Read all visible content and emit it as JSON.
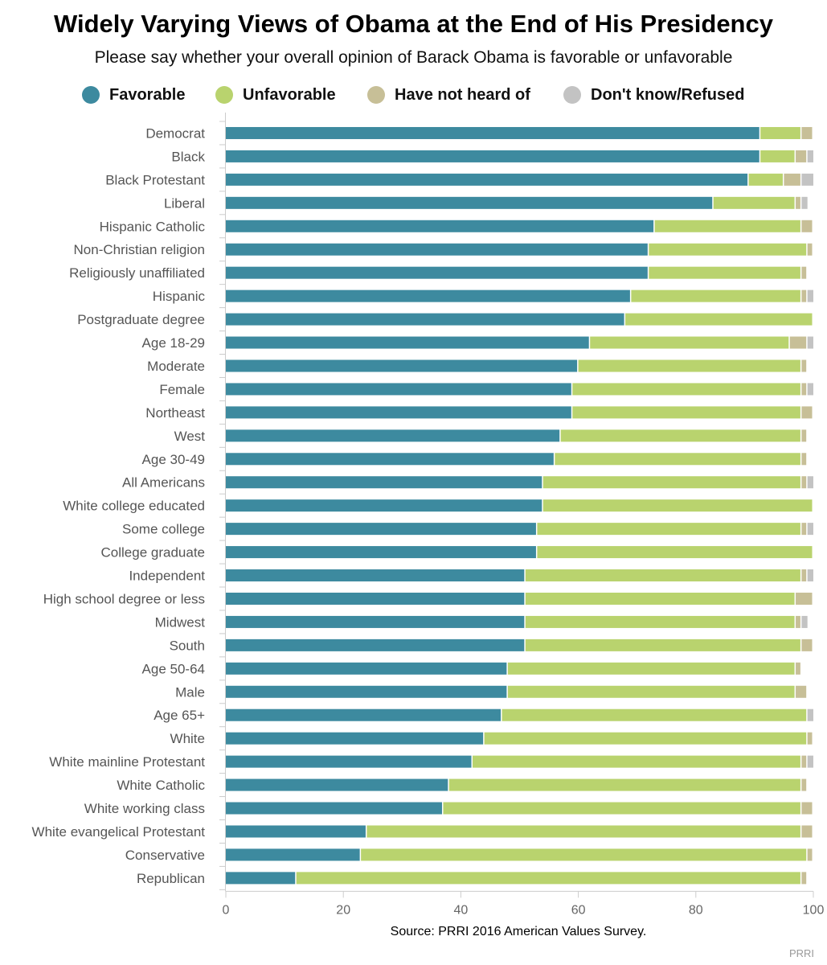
{
  "chart_data": {
    "type": "bar",
    "orientation": "horizontal",
    "stacked": true,
    "title": "Widely Varying Views of Obama at the End of His Presidency",
    "subtitle": "Please say whether your overall opinion of Barack Obama is favorable or unfavorable",
    "source": "Source: PRRI 2016 American Values Survey.",
    "credit": "PRRI",
    "xlim": [
      0,
      100
    ],
    "xticks": [
      "0",
      "20",
      "40",
      "60",
      "80",
      "100"
    ],
    "legend_position": "top",
    "categories": [
      "Democrat",
      "Black",
      "Black Protestant",
      "Liberal",
      "Hispanic Catholic",
      "Non-Christian religion",
      "Religiously unaffiliated",
      "Hispanic",
      "Postgraduate degree",
      "Age 18-29",
      "Moderate",
      "Female",
      "Northeast",
      "West",
      "Age 30-49",
      "All Americans",
      "White college educated",
      "Some college",
      "College graduate",
      "Independent",
      "High school degree or less",
      "Midwest",
      "South",
      "Age 50-64",
      "Male",
      "Age 65+",
      "White",
      "White mainline Protestant",
      "White Catholic",
      "White working class",
      "White evangelical Protestant",
      "Conservative",
      "Republican"
    ],
    "series": [
      {
        "name": "Favorable",
        "color": "#3d8a9f",
        "values": [
          91,
          91,
          89,
          83,
          73,
          72,
          72,
          69,
          68,
          62,
          60,
          59,
          59,
          57,
          56,
          54,
          54,
          53,
          53,
          51,
          51,
          51,
          51,
          48,
          48,
          47,
          44,
          42,
          38,
          37,
          24,
          23,
          12
        ]
      },
      {
        "name": "Unfavorable",
        "color": "#b9d36e",
        "values": [
          7,
          6,
          6,
          14,
          25,
          27,
          26,
          29,
          33,
          34,
          38,
          39,
          39,
          41,
          42,
          44,
          46,
          45,
          47,
          47,
          46,
          46,
          47,
          49,
          49,
          52,
          55,
          56,
          60,
          61,
          74,
          76,
          86
        ]
      },
      {
        "name": "Have not heard of",
        "color": "#c7bf97",
        "values": [
          2,
          2,
          3,
          1,
          2,
          1,
          1,
          1,
          0,
          3,
          1,
          1,
          2,
          1,
          1,
          1,
          0,
          1,
          0,
          1,
          3,
          1,
          2,
          1,
          2,
          0,
          1,
          1,
          1,
          2,
          2,
          1,
          1
        ]
      },
      {
        "name": "Don't know/Refused",
        "color": "#c3c3c3",
        "values": [
          0,
          1,
          2,
          1,
          0,
          0,
          0,
          1,
          0,
          1,
          0,
          1,
          0,
          0,
          0,
          1,
          0,
          1,
          0,
          1,
          0,
          1,
          0,
          0,
          0,
          1,
          0,
          1,
          0,
          0,
          0,
          0,
          0
        ]
      }
    ]
  }
}
